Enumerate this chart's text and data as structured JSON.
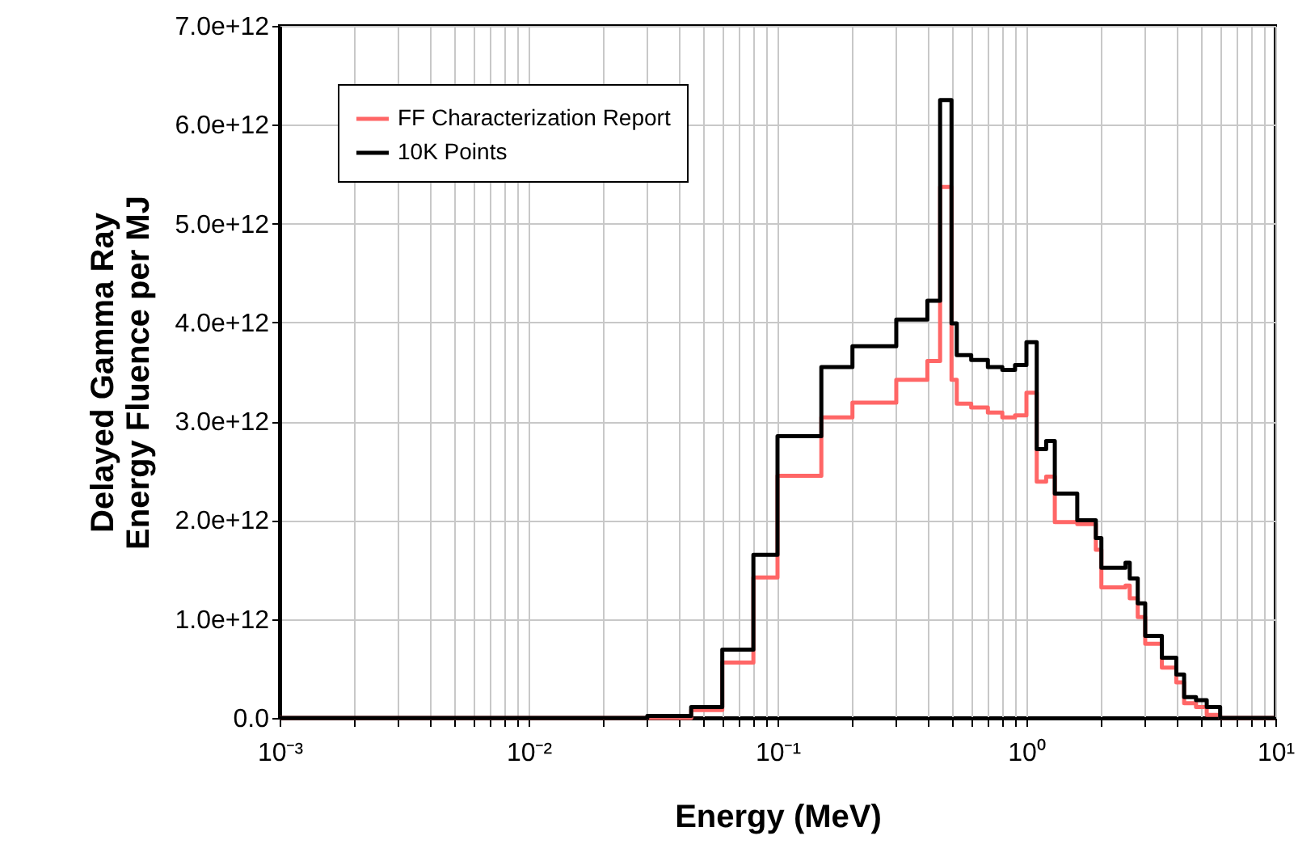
{
  "chart_data": {
    "type": "step",
    "xlabel": "Energy (MeV)",
    "ylabel": "Delayed Gamma Ray\nEnergy Fluence per MJ",
    "log": "x",
    "grid": true,
    "legend": "top left",
    "marker": "none",
    "line_style": "solid",
    "x": [
      0.001,
      0.03,
      0.045,
      0.06,
      0.08,
      0.1,
      0.15,
      0.2,
      0.3,
      0.4,
      0.45,
      0.5,
      0.525,
      0.6,
      0.7,
      0.8,
      0.9,
      1.0,
      1.1,
      1.2,
      1.3,
      1.6,
      1.9,
      2.0,
      2.5,
      2.6,
      2.8,
      3.0,
      3.5,
      4.0,
      4.3,
      4.8,
      5.3,
      6.0,
      10
    ],
    "series": [
      {
        "name": "FF Characterization Report",
        "color": "#ff6666",
        "values": [
          0,
          0,
          80000000000.0,
          560000000000.0,
          1420000000000.0,
          2450000000000.0,
          3040000000000.0,
          3190000000000.0,
          3420000000000.0,
          3610000000000.0,
          5370000000000.0,
          3420000000000.0,
          3180000000000.0,
          3140000000000.0,
          3090000000000.0,
          3040000000000.0,
          3060000000000.0,
          3290000000000.0,
          2390000000000.0,
          2440000000000.0,
          1980000000000.0,
          1960000000000.0,
          1700000000000.0,
          1320000000000.0,
          1340000000000.0,
          1210000000000.0,
          1020000000000.0,
          750000000000.0,
          510000000000.0,
          360000000000.0,
          150000000000.0,
          110000000000.0,
          30000000000.0,
          0,
          0
        ]
      },
      {
        "name": "10K Points",
        "color": "#000000",
        "values": [
          0,
          20000000000.0,
          110000000000.0,
          690000000000.0,
          1650000000000.0,
          2850000000000.0,
          3550000000000.0,
          3760000000000.0,
          4030000000000.0,
          4220000000000.0,
          6250000000000.0,
          3990000000000.0,
          3670000000000.0,
          3620000000000.0,
          3550000000000.0,
          3520000000000.0,
          3570000000000.0,
          3800000000000.0,
          2720000000000.0,
          2800000000000.0,
          2270000000000.0,
          2000000000000.0,
          1820000000000.0,
          1520000000000.0,
          1570000000000.0,
          1410000000000.0,
          1160000000000.0,
          830000000000.0,
          610000000000.0,
          440000000000.0,
          210000000000.0,
          180000000000.0,
          110000000000.0,
          0,
          0
        ]
      }
    ],
    "xlim": [
      0.001,
      10
    ],
    "xticks": [
      {
        "value": 0.001,
        "label": "10⁻³"
      },
      {
        "value": 0.002,
        "label": null
      },
      {
        "value": 0.003,
        "label": null
      },
      {
        "value": 0.004,
        "label": null
      },
      {
        "value": 0.005,
        "label": null
      },
      {
        "value": 0.006,
        "label": null
      },
      {
        "value": 0.007,
        "label": null
      },
      {
        "value": 0.008,
        "label": null
      },
      {
        "value": 0.009,
        "label": null
      },
      {
        "value": 0.01,
        "label": "10⁻²"
      },
      {
        "value": 0.02,
        "label": null
      },
      {
        "value": 0.03,
        "label": null
      },
      {
        "value": 0.04,
        "label": null
      },
      {
        "value": 0.05,
        "label": null
      },
      {
        "value": 0.06,
        "label": null
      },
      {
        "value": 0.07,
        "label": null
      },
      {
        "value": 0.08,
        "label": null
      },
      {
        "value": 0.09,
        "label": null
      },
      {
        "value": 0.1,
        "label": "10⁻¹"
      },
      {
        "value": 0.2,
        "label": null
      },
      {
        "value": 0.3,
        "label": null
      },
      {
        "value": 0.4,
        "label": null
      },
      {
        "value": 0.5,
        "label": null
      },
      {
        "value": 0.6,
        "label": null
      },
      {
        "value": 0.7,
        "label": null
      },
      {
        "value": 0.8,
        "label": null
      },
      {
        "value": 0.9,
        "label": null
      },
      {
        "value": 1,
        "label": "10⁰"
      },
      {
        "value": 2,
        "label": null
      },
      {
        "value": 3,
        "label": null
      },
      {
        "value": 4,
        "label": null
      },
      {
        "value": 5,
        "label": null
      },
      {
        "value": 6,
        "label": null
      },
      {
        "value": 7,
        "label": null
      },
      {
        "value": 8,
        "label": null
      },
      {
        "value": 9,
        "label": null
      },
      {
        "value": 10,
        "label": "10¹"
      }
    ],
    "ylim": [
      0,
      7000000000000.0
    ],
    "yticks": [
      {
        "value": 0,
        "label": "0.0"
      },
      {
        "value": 1000000000000.0,
        "label": "1.0e+12"
      },
      {
        "value": 2000000000000.0,
        "label": "2.0e+12"
      },
      {
        "value": 3000000000000.0,
        "label": "3.0e+12"
      },
      {
        "value": 4000000000000.0,
        "label": "4.0e+12"
      },
      {
        "value": 5000000000000.0,
        "label": "5.0e+12"
      },
      {
        "value": 6000000000000.0,
        "label": "6.0e+12"
      },
      {
        "value": 7000000000000.0,
        "label": "7.0e+12"
      }
    ]
  }
}
